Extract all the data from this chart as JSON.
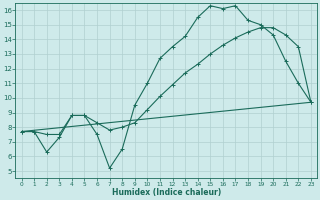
{
  "xlabel": "Humidex (Indice chaleur)",
  "bg_color": "#ceeaea",
  "grid_color": "#b0d0d0",
  "line_color": "#1a6b5a",
  "xlim": [
    -0.5,
    23.5
  ],
  "ylim": [
    4.5,
    16.5
  ],
  "xticks": [
    0,
    1,
    2,
    3,
    4,
    5,
    6,
    7,
    8,
    9,
    10,
    11,
    12,
    13,
    14,
    15,
    16,
    17,
    18,
    19,
    20,
    21,
    22,
    23
  ],
  "yticks": [
    5,
    6,
    7,
    8,
    9,
    10,
    11,
    12,
    13,
    14,
    15,
    16
  ],
  "series1_x": [
    0,
    1,
    2,
    3,
    4,
    5,
    6,
    7,
    8,
    9,
    10,
    11,
    12,
    13,
    14,
    15,
    16,
    17,
    18,
    19,
    20,
    21,
    22,
    23
  ],
  "series1_y": [
    7.7,
    7.7,
    6.3,
    7.3,
    8.8,
    8.8,
    7.5,
    5.2,
    6.5,
    9.5,
    11.0,
    12.7,
    13.5,
    14.2,
    15.5,
    16.3,
    16.1,
    16.3,
    15.3,
    15.0,
    14.3,
    12.5,
    11.0,
    9.7
  ],
  "series2_x": [
    0,
    1,
    2,
    3,
    4,
    5,
    6,
    7,
    8,
    9,
    10,
    11,
    12,
    13,
    14,
    15,
    16,
    17,
    18,
    19,
    20,
    21,
    22,
    23
  ],
  "series2_y": [
    7.7,
    7.7,
    7.5,
    7.5,
    8.8,
    8.8,
    8.3,
    7.8,
    8.0,
    8.3,
    9.2,
    10.1,
    10.9,
    11.7,
    12.3,
    13.0,
    13.6,
    14.1,
    14.5,
    14.8,
    14.8,
    14.3,
    13.5,
    9.7
  ],
  "series3_x": [
    0,
    23
  ],
  "series3_y": [
    7.7,
    9.7
  ]
}
